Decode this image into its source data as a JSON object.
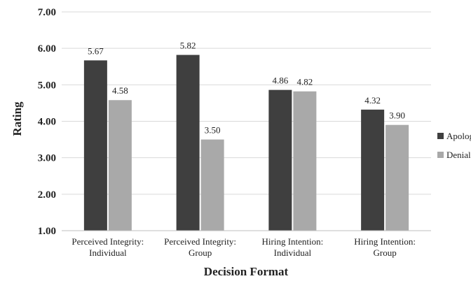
{
  "chart_data": {
    "type": "bar",
    "categories": [
      [
        "Perceived Integrity:",
        "Individual"
      ],
      [
        "Perceived Integrity:",
        "Group"
      ],
      [
        "Hiring Intention:",
        "Individual"
      ],
      [
        "Hiring Intention:",
        "Group"
      ]
    ],
    "series": [
      {
        "name": "Apology",
        "values": [
          5.67,
          5.82,
          4.86,
          4.32
        ],
        "labels": [
          "5.67",
          "5.82",
          "4.86",
          "4.32"
        ],
        "color": "#3f3f3f"
      },
      {
        "name": "Denial",
        "values": [
          4.58,
          3.5,
          4.82,
          3.9
        ],
        "labels": [
          "4.58",
          "3.50",
          "4.82",
          "3.90"
        ],
        "color": "#a9a9a9"
      }
    ],
    "title": "",
    "xlabel": "Decision Format",
    "ylabel": "Rating",
    "ylim": [
      1.0,
      7.0
    ],
    "yticks": [
      "1.00",
      "2.00",
      "3.00",
      "4.00",
      "5.00",
      "6.00",
      "7.00"
    ],
    "grid": true,
    "legend": "right"
  }
}
